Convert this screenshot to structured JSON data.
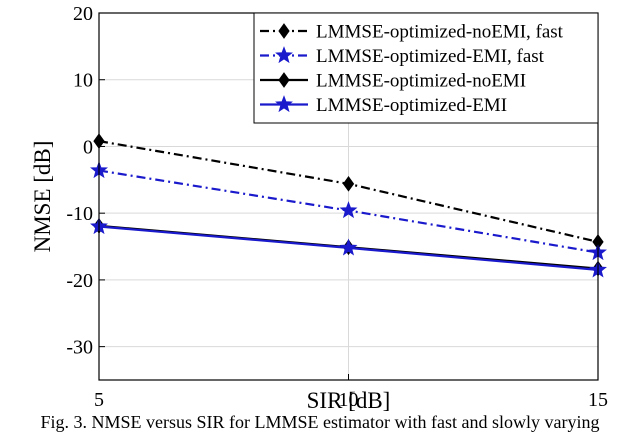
{
  "caption": "Fig. 3. NMSE versus SIR for LMMSE estimator with fast and slowly varying",
  "chart_data": {
    "type": "line",
    "xlabel": "SIR [dB]",
    "ylabel": "NMSE [dB]",
    "xlim": [
      5,
      15
    ],
    "ylim": [
      -35,
      20
    ],
    "xticks": [
      5,
      10,
      15
    ],
    "yticks": [
      20,
      10,
      0,
      -10,
      -20,
      -30
    ],
    "grid": true,
    "legend_position": "top-right",
    "x": [
      5,
      10,
      15
    ],
    "series": [
      {
        "name": "LMMSE-optimized-noEMI, fast",
        "values": [
          0.8,
          -5.6,
          -14.3
        ],
        "color": "#000000",
        "dash": "dashdot",
        "marker": "diamond"
      },
      {
        "name": "LMMSE-optimized-EMI, fast",
        "values": [
          -3.6,
          -9.6,
          -15.9
        ],
        "color": "#1a1acc",
        "dash": "dashdot",
        "marker": "star"
      },
      {
        "name": "LMMSE-optimized-noEMI",
        "values": [
          -11.9,
          -15.1,
          -18.3
        ],
        "color": "#000000",
        "dash": "solid",
        "marker": "diamond"
      },
      {
        "name": "LMMSE-optimized-EMI",
        "values": [
          -12.0,
          -15.2,
          -18.5
        ],
        "color": "#1a1acc",
        "dash": "solid",
        "marker": "star"
      }
    ]
  }
}
